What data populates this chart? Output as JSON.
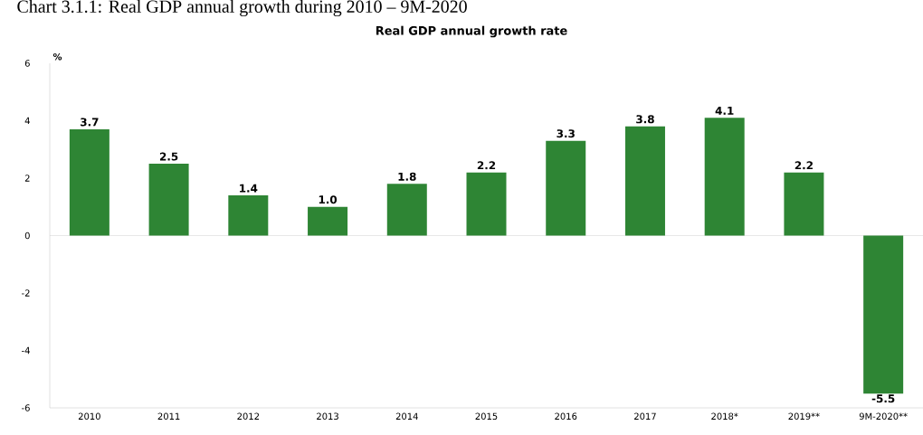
{
  "chart_data": {
    "type": "bar",
    "title": "Real GDP annual growth rate",
    "ylabel": "%",
    "annotations": [
      "Chart 3.1.1: Real GDP annual growth during 2010 – 9M-2020"
    ],
    "categories": [
      "2010",
      "2011",
      "2012",
      "2013",
      "2014",
      "2015",
      "2016",
      "2017",
      "2018*",
      "2019**",
      "9M-2020**"
    ],
    "values": [
      3.7,
      2.5,
      1.4,
      1.0,
      1.8,
      2.2,
      3.3,
      3.8,
      4.1,
      2.2,
      -5.5
    ],
    "color": "#2e8534",
    "data_labels": true,
    "value_labels": [
      "3.7",
      "2.5",
      "1.4",
      "1.0",
      "1.8",
      "2.2",
      "3.3",
      "3.8",
      "4.1",
      "2.2",
      "-5.5"
    ],
    "ylim": [
      -6,
      6
    ],
    "yticks": [
      -6,
      -4,
      -2,
      0,
      2,
      4,
      6
    ],
    "ref_lines": [
      {
        "axis": "y",
        "value": 0,
        "color": "#bfbfbf"
      }
    ]
  }
}
